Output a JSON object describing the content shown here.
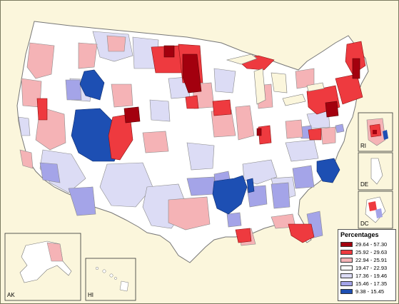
{
  "map": {
    "legend_title": "Percentages",
    "legend": [
      {
        "range": "29.64 - 57.30",
        "color": "#a3000e"
      },
      {
        "range": "25.92 - 29.63",
        "color": "#ee3a3f"
      },
      {
        "range": "22.94 - 25.91",
        "color": "#f5b3b6"
      },
      {
        "range": "19.47 - 22.93",
        "color": "#ffffff"
      },
      {
        "range": "17.36 - 19.46",
        "color": "#dcdcf5"
      },
      {
        "range": "15.46 - 17.35",
        "color": "#a4a4e8"
      },
      {
        "range": "9.38 - 15.45",
        "color": "#1d4fb3"
      }
    ],
    "insets": {
      "ri": "RI",
      "de": "DE",
      "dc": "DC",
      "ak": "AK",
      "hi": "HI"
    },
    "colors": {
      "background": "#fbf6dc",
      "border": "#7a7a60",
      "region_outline": "#8a8a8a"
    }
  }
}
